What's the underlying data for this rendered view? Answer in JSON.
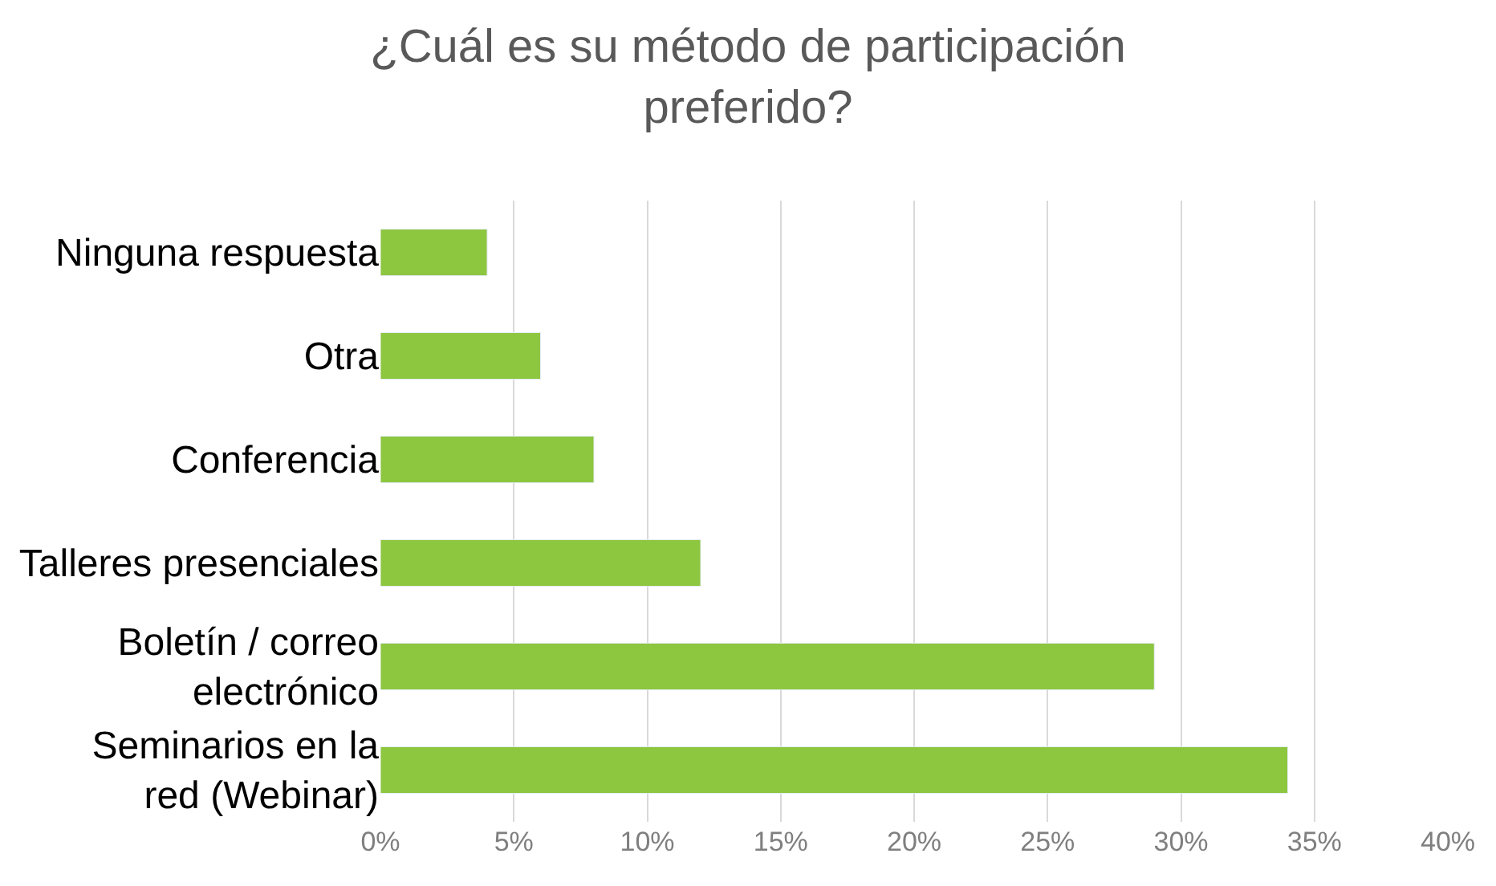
{
  "chart_data": {
    "type": "bar",
    "orientation": "horizontal",
    "title": "¿Cuál es su método de participación\npreferido?",
    "categories": [
      "Ninguna respuesta",
      "Otra",
      "Conferencia",
      "Talleres presenciales",
      "Boletín / correo\nelectrónico",
      "Seminarios en la\nred (Webinar)"
    ],
    "values": [
      4,
      6,
      8,
      12,
      29,
      34
    ],
    "color": "#8dc63f",
    "xlim": [
      0,
      40
    ],
    "xticks": [
      {
        "value": 0,
        "label": "0%"
      },
      {
        "value": 5,
        "label": "5%"
      },
      {
        "value": 10,
        "label": "10%"
      },
      {
        "value": 15,
        "label": "15%"
      },
      {
        "value": 20,
        "label": "20%"
      },
      {
        "value": 25,
        "label": "25%"
      },
      {
        "value": 30,
        "label": "30%"
      },
      {
        "value": 35,
        "label": "35%"
      },
      {
        "value": 40,
        "label": "40%"
      }
    ],
    "grid": "x",
    "legend": false
  }
}
